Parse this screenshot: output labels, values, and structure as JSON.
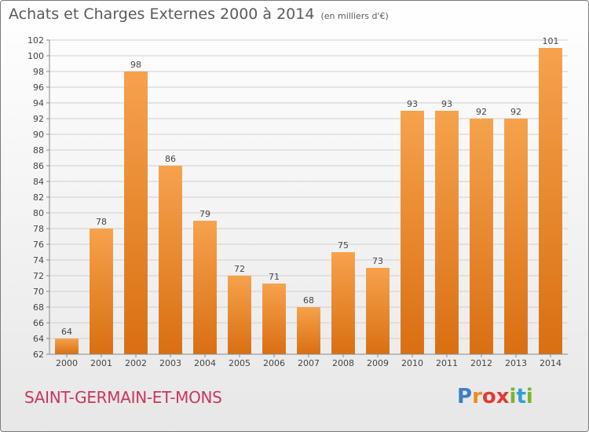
{
  "title": "Achats et Charges Externes 2000 à 2014",
  "unit_label": "(en milliers d'€)",
  "commune": "SAINT-GERMAIN-ET-MONS",
  "brand": {
    "letters": [
      "P",
      "r",
      "o",
      "x",
      "i",
      "t",
      "i"
    ]
  },
  "colors": {
    "bar_light": "#f6a24c",
    "bar_dark": "#d96f12",
    "grid": "#cfcfcf",
    "text": "#444444",
    "commune": "#c8365d"
  },
  "chart_data": {
    "type": "bar",
    "title": "Achats et Charges Externes 2000 à 2014",
    "subtitle": "(en milliers d'€)",
    "categories": [
      "2000",
      "2001",
      "2002",
      "2003",
      "2004",
      "2005",
      "2006",
      "2007",
      "2008",
      "2009",
      "2010",
      "2011",
      "2012",
      "2013",
      "2014"
    ],
    "values": [
      64,
      78,
      98,
      86,
      79,
      72,
      71,
      68,
      75,
      73,
      93,
      93,
      92,
      92,
      101
    ],
    "ylim": [
      62,
      102
    ],
    "yticks": [
      62,
      64,
      66,
      68,
      70,
      72,
      74,
      76,
      78,
      80,
      82,
      84,
      86,
      88,
      90,
      92,
      94,
      96,
      98,
      100,
      102
    ],
    "grid": true,
    "data_labels": true
  }
}
